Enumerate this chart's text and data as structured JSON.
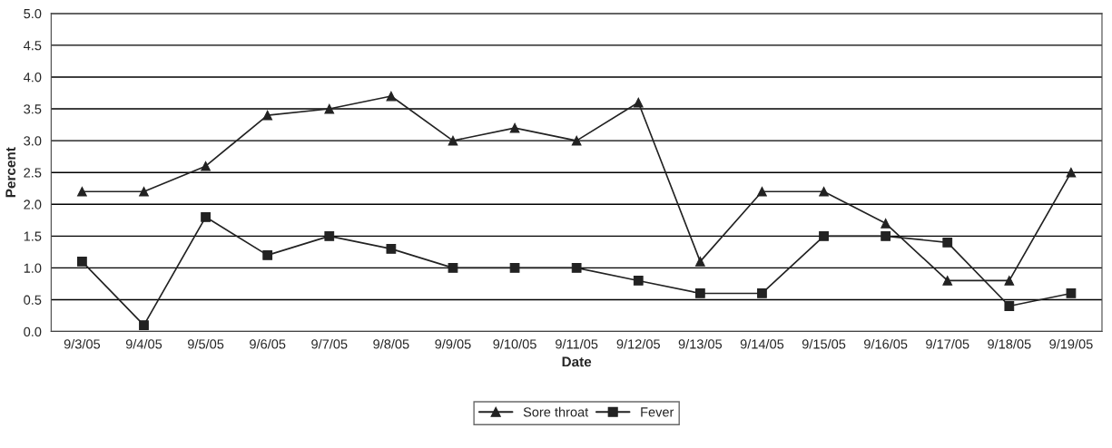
{
  "chart_data": {
    "type": "line",
    "xlabel": "Date",
    "ylabel": "Percent",
    "categories": [
      "9/3/05",
      "9/4/05",
      "9/5/05",
      "9/6/05",
      "9/7/05",
      "9/8/05",
      "9/9/05",
      "9/10/05",
      "9/11/05",
      "9/12/05",
      "9/13/05",
      "9/14/05",
      "9/15/05",
      "9/16/05",
      "9/17/05",
      "9/18/05",
      "9/19/05"
    ],
    "series": [
      {
        "name": "Sore throat",
        "color": "#222222",
        "marker": "triangle",
        "values": [
          2.2,
          2.2,
          2.6,
          3.4,
          3.5,
          3.7,
          3.0,
          3.2,
          3.0,
          3.6,
          1.1,
          2.2,
          2.2,
          1.7,
          0.8,
          0.8,
          2.5
        ]
      },
      {
        "name": "Fever",
        "color": "#222222",
        "marker": "square",
        "values": [
          1.1,
          0.1,
          1.8,
          1.2,
          1.5,
          1.3,
          1.0,
          1.0,
          1.0,
          0.8,
          0.6,
          0.6,
          1.5,
          1.5,
          1.4,
          0.4,
          0.6
        ]
      }
    ],
    "ylim": [
      0,
      5
    ],
    "yticks": [
      {
        "value": 0,
        "label": "0.0"
      },
      0.5,
      {
        "value": 1,
        "label": "1.0"
      },
      1.5,
      {
        "value": 2,
        "label": "2.0"
      },
      2.5,
      {
        "value": 3,
        "label": "3.0"
      },
      3.5,
      {
        "value": 4,
        "label": "4.0"
      },
      4.5,
      {
        "value": 5,
        "label": "5.0"
      }
    ],
    "grid": "y",
    "legend": "bottom",
    "line_style": "solid"
  }
}
